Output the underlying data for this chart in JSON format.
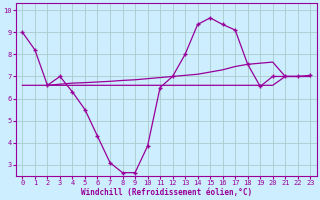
{
  "xlabel": "Windchill (Refroidissement éolien,°C)",
  "background_color": "#cceeff",
  "line_color": "#990099",
  "xlim": [
    -0.5,
    23.5
  ],
  "ylim": [
    2.5,
    10.3
  ],
  "xticks": [
    0,
    1,
    2,
    3,
    4,
    5,
    6,
    7,
    8,
    9,
    10,
    11,
    12,
    13,
    14,
    15,
    16,
    17,
    18,
    19,
    20,
    21,
    22,
    23
  ],
  "yticks": [
    3,
    4,
    5,
    6,
    7,
    8,
    9,
    10
  ],
  "grid_color": "#aacccc",
  "curve1_x": [
    0,
    1,
    2,
    3,
    4,
    5,
    6,
    7,
    8,
    9,
    10,
    11,
    12,
    13,
    14,
    15,
    16,
    17,
    18,
    19,
    20,
    21,
    22,
    23
  ],
  "curve1_y": [
    9.0,
    8.2,
    6.6,
    7.0,
    6.3,
    5.5,
    4.3,
    3.1,
    2.65,
    2.65,
    3.85,
    6.5,
    7.0,
    8.0,
    9.35,
    9.65,
    9.35,
    9.1,
    7.55,
    6.55,
    7.0,
    7.0,
    7.0,
    7.05
  ],
  "curve2_x": [
    0,
    1,
    2,
    3,
    4,
    5,
    6,
    7,
    8,
    9,
    10,
    11,
    12,
    13,
    14,
    15,
    16,
    17,
    18,
    19,
    20,
    21,
    22,
    23
  ],
  "curve2_y": [
    6.6,
    6.6,
    6.6,
    6.6,
    6.6,
    6.6,
    6.6,
    6.6,
    6.6,
    6.6,
    6.6,
    6.6,
    6.6,
    6.6,
    6.6,
    6.6,
    6.6,
    6.6,
    6.6,
    6.6,
    6.6,
    7.0,
    7.0,
    7.0
  ],
  "curve3_x": [
    2,
    3,
    4,
    5,
    6,
    7,
    8,
    9,
    10,
    11,
    12,
    13,
    14,
    15,
    16,
    17,
    18,
    19,
    20,
    21,
    22,
    23
  ],
  "curve3_y": [
    6.6,
    6.65,
    6.7,
    6.72,
    6.75,
    6.78,
    6.82,
    6.85,
    6.9,
    6.95,
    7.0,
    7.05,
    7.1,
    7.2,
    7.3,
    7.45,
    7.55,
    7.6,
    7.65,
    7.0,
    7.0,
    7.0
  ],
  "font_color": "#990099",
  "marker_style": "+",
  "lw": 0.9,
  "ms": 3.5,
  "tick_fontsize": 5.0,
  "xlabel_fontsize": 5.5
}
